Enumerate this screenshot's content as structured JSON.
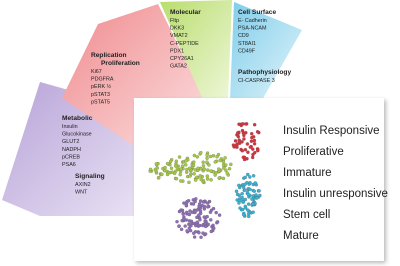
{
  "panels": [
    {
      "title": "Metabolic",
      "items": [
        "Insulin",
        "Glucokinase",
        "GLUT2",
        "NADPH",
        "pCREB",
        "PSA6"
      ],
      "sub_title": "Signaling",
      "sub_items": [
        "AXIN2",
        "WNT"
      ]
    },
    {
      "title": "Replication Proliferation",
      "items": [
        "Ki67",
        "PDGFRA",
        "pERK ½",
        "pSTAT3",
        "pSTAT5"
      ]
    },
    {
      "title": "Molecular",
      "items": [
        "Fltp",
        "DKK3",
        "VMAT2",
        "C-PEPTIDE",
        "PDX1",
        "CPY26A1",
        "GATA2"
      ]
    },
    {
      "title": "Cell Surface",
      "items": [
        "E- Cadherin",
        "PSA-NCAM",
        "CD9",
        "ST8AI1",
        "CD49F"
      ],
      "sub_title": "Pathophysiology",
      "sub_items": [
        "CI-CASPASE 3"
      ]
    }
  ],
  "legend": [
    "Insulin Responsive",
    "Proliferative",
    "Immature",
    "Insulin unresponsive",
    "Stem cell",
    "Mature"
  ]
}
